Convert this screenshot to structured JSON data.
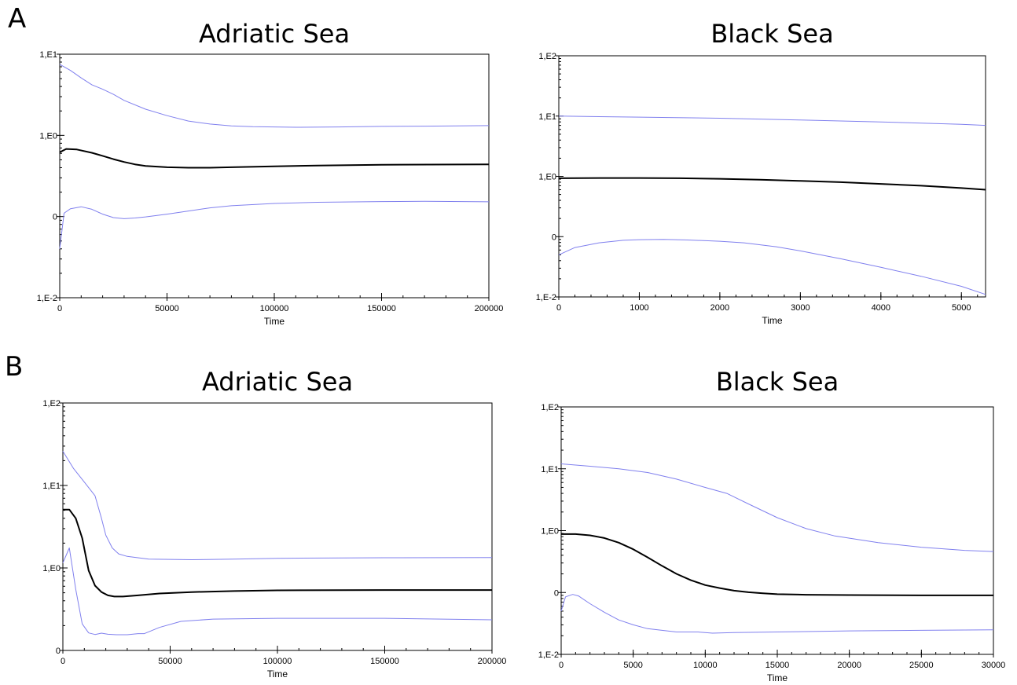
{
  "panel_labels": [
    "A",
    "B"
  ],
  "colors": {
    "median": "#000000",
    "hpd": "#8080ee"
  },
  "chart_data": [
    {
      "type": "line",
      "panel": "A",
      "title": "Adriatic Sea",
      "xlabel": "Time",
      "ylabel": "",
      "xlim": [
        0,
        200000
      ],
      "xticks": [
        0,
        50000,
        100000,
        150000,
        200000
      ],
      "yscale": "log",
      "ylim": [
        0.01,
        10
      ],
      "yticks": [
        {
          "value": 0.01,
          "label": "1,E-2"
        },
        {
          "value": 0.1,
          "label": "0"
        },
        {
          "value": 1,
          "label": "1,E0"
        },
        {
          "value": 10,
          "label": "1,E1"
        }
      ],
      "series": [
        {
          "role": "upper",
          "x": [
            0,
            5000,
            10000,
            15000,
            20000,
            25000,
            30000,
            40000,
            50000,
            60000,
            70000,
            80000,
            90000,
            100000,
            110000,
            130000,
            150000,
            170000,
            200000
          ],
          "y": [
            7.5,
            6.3,
            5.1,
            4.2,
            3.7,
            3.2,
            2.7,
            2.1,
            1.75,
            1.5,
            1.38,
            1.31,
            1.28,
            1.27,
            1.26,
            1.27,
            1.29,
            1.3,
            1.32
          ]
        },
        {
          "role": "median",
          "x": [
            0,
            3000,
            8000,
            15000,
            20000,
            25000,
            30000,
            35000,
            40000,
            50000,
            60000,
            70000,
            80000,
            100000,
            120000,
            150000,
            200000
          ],
          "y": [
            0.62,
            0.68,
            0.67,
            0.61,
            0.56,
            0.51,
            0.47,
            0.44,
            0.42,
            0.405,
            0.4,
            0.4,
            0.405,
            0.415,
            0.425,
            0.435,
            0.44
          ]
        },
        {
          "role": "lower",
          "x": [
            0,
            2000,
            5000,
            10000,
            15000,
            20000,
            25000,
            30000,
            35000,
            40000,
            50000,
            60000,
            70000,
            80000,
            100000,
            120000,
            150000,
            170000,
            200000
          ],
          "y": [
            0.04,
            0.11,
            0.125,
            0.132,
            0.123,
            0.107,
            0.097,
            0.094,
            0.096,
            0.099,
            0.107,
            0.117,
            0.128,
            0.136,
            0.145,
            0.15,
            0.153,
            0.154,
            0.152
          ]
        }
      ]
    },
    {
      "type": "line",
      "panel": "A",
      "title": "Black Sea",
      "xlabel": "Time",
      "ylabel": "",
      "xlim": [
        0,
        5300
      ],
      "xticks": [
        0,
        1000,
        2000,
        3000,
        4000,
        5000
      ],
      "yscale": "log",
      "ylim": [
        0.01,
        100
      ],
      "yticks": [
        {
          "value": 0.01,
          "label": "1,E-2"
        },
        {
          "value": 0.1,
          "label": "0"
        },
        {
          "value": 1,
          "label": "1,E0"
        },
        {
          "value": 10,
          "label": "1,E1"
        },
        {
          "value": 100,
          "label": "1,E2"
        }
      ],
      "series": [
        {
          "role": "upper",
          "x": [
            0,
            1000,
            2000,
            3000,
            4000,
            5000,
            5300
          ],
          "y": [
            10.0,
            9.6,
            9.2,
            8.6,
            8.0,
            7.3,
            7.0
          ]
        },
        {
          "role": "median",
          "x": [
            0,
            500,
            1000,
            1500,
            2000,
            2500,
            3000,
            3500,
            4000,
            4500,
            5000,
            5300
          ],
          "y": [
            0.93,
            0.94,
            0.94,
            0.93,
            0.91,
            0.88,
            0.84,
            0.8,
            0.75,
            0.7,
            0.64,
            0.6
          ]
        },
        {
          "role": "lower",
          "x": [
            0,
            200,
            500,
            800,
            1000,
            1300,
            1600,
            2000,
            2300,
            2700,
            3000,
            3500,
            4000,
            4500,
            5000,
            5300
          ],
          "y": [
            0.05,
            0.066,
            0.079,
            0.087,
            0.089,
            0.09,
            0.088,
            0.084,
            0.079,
            0.068,
            0.058,
            0.043,
            0.031,
            0.022,
            0.015,
            0.011
          ]
        }
      ]
    },
    {
      "type": "line",
      "panel": "B",
      "title": "Adriatic Sea",
      "xlabel": "Time",
      "ylabel": "",
      "xlim": [
        0,
        200000
      ],
      "xticks": [
        0,
        50000,
        100000,
        150000,
        200000
      ],
      "yscale": "log",
      "ylim": [
        0.1,
        100
      ],
      "yticks": [
        {
          "value": 0.1,
          "label": "0"
        },
        {
          "value": 1,
          "label": "1,E0"
        },
        {
          "value": 10,
          "label": "1,E1"
        },
        {
          "value": 100,
          "label": "1,E2"
        }
      ],
      "series": [
        {
          "role": "upper",
          "x": [
            0,
            5000,
            10000,
            15000,
            18000,
            20000,
            23000,
            26000,
            30000,
            40000,
            60000,
            80000,
            100000,
            150000,
            200000
          ],
          "y": [
            26,
            16,
            11,
            7.5,
            4.0,
            2.5,
            1.75,
            1.48,
            1.38,
            1.28,
            1.26,
            1.28,
            1.31,
            1.33,
            1.34
          ]
        },
        {
          "role": "median",
          "x": [
            0,
            3000,
            6000,
            9000,
            12000,
            15000,
            18000,
            21000,
            24000,
            28000,
            35000,
            45000,
            60000,
            80000,
            100000,
            150000,
            200000
          ],
          "y": [
            5.1,
            5.1,
            4.0,
            2.3,
            0.93,
            0.61,
            0.51,
            0.465,
            0.45,
            0.45,
            0.465,
            0.49,
            0.51,
            0.525,
            0.535,
            0.54,
            0.54
          ]
        },
        {
          "role": "lower",
          "x": [
            0,
            3000,
            6000,
            9000,
            12000,
            15000,
            18000,
            21000,
            25000,
            30000,
            35000,
            38000,
            45000,
            55000,
            70000,
            100000,
            150000,
            200000
          ],
          "y": [
            1.15,
            1.75,
            0.55,
            0.21,
            0.163,
            0.156,
            0.162,
            0.157,
            0.155,
            0.155,
            0.16,
            0.16,
            0.19,
            0.225,
            0.24,
            0.245,
            0.245,
            0.235
          ]
        }
      ]
    },
    {
      "type": "line",
      "panel": "B",
      "title": "Black Sea",
      "xlabel": "Time",
      "ylabel": "",
      "xlim": [
        0,
        30000
      ],
      "xticks": [
        0,
        5000,
        10000,
        15000,
        20000,
        25000,
        30000
      ],
      "yscale": "log",
      "ylim": [
        0.01,
        100
      ],
      "yticks": [
        {
          "value": 0.01,
          "label": "1,E-2"
        },
        {
          "value": 0.1,
          "label": "0"
        },
        {
          "value": 1,
          "label": "1,E0"
        },
        {
          "value": 10,
          "label": "1,E1"
        },
        {
          "value": 100,
          "label": "1,E2"
        }
      ],
      "series": [
        {
          "role": "upper",
          "x": [
            0,
            2000,
            4000,
            6000,
            8000,
            10000,
            11500,
            13000,
            15000,
            17000,
            19000,
            22000,
            25000,
            28000,
            30000
          ],
          "y": [
            12,
            11.0,
            10.0,
            8.7,
            6.8,
            5.0,
            4.0,
            2.7,
            1.62,
            1.08,
            0.82,
            0.64,
            0.54,
            0.48,
            0.46
          ]
        },
        {
          "role": "median",
          "x": [
            0,
            1000,
            2000,
            3000,
            4000,
            5000,
            6000,
            7000,
            8000,
            9000,
            10000,
            11000,
            12000,
            13000,
            14000,
            15000,
            17000,
            20000,
            25000,
            30000
          ],
          "y": [
            0.88,
            0.88,
            0.84,
            0.76,
            0.64,
            0.5,
            0.37,
            0.27,
            0.2,
            0.158,
            0.132,
            0.118,
            0.107,
            0.101,
            0.097,
            0.094,
            0.092,
            0.091,
            0.09,
            0.09
          ]
        },
        {
          "role": "lower",
          "x": [
            0,
            300,
            800,
            1200,
            2000,
            3000,
            4000,
            5000,
            6000,
            8000,
            9500,
            10500,
            12000,
            15000,
            20000,
            25000,
            30000
          ],
          "y": [
            0.05,
            0.085,
            0.093,
            0.088,
            0.066,
            0.048,
            0.036,
            0.03,
            0.026,
            0.023,
            0.023,
            0.022,
            0.0225,
            0.023,
            0.024,
            0.0245,
            0.025
          ]
        }
      ]
    }
  ]
}
